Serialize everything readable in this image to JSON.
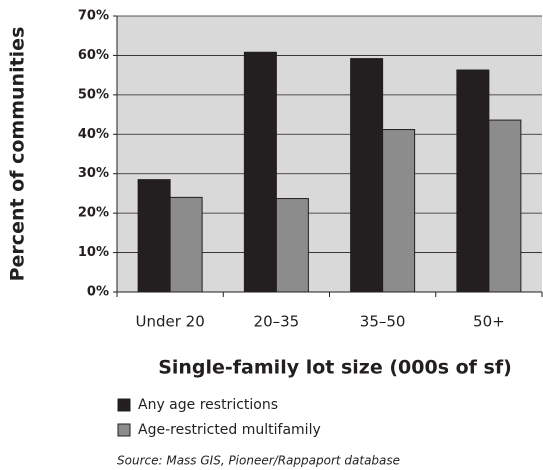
{
  "chart_data": {
    "type": "bar",
    "y_label": "Percent of communities",
    "x_label": "Single-family lot size (000s of sf)",
    "source": "Source: Mass GIS, Pioneer/Rappaport database",
    "categories": [
      "Under 20",
      "20–35",
      "35–50",
      "50+"
    ],
    "series": [
      {
        "name": "Any age restrictions",
        "color": "#231f20",
        "values": [
          28.5,
          60.8,
          59.2,
          56.3
        ]
      },
      {
        "name": "Age-restricted multifamily",
        "color": "#8c8c8c",
        "values": [
          24,
          23.7,
          41.2,
          43.6
        ]
      }
    ],
    "ylim": [
      0,
      70
    ],
    "yticks": [
      {
        "value": 0,
        "label": "0%"
      },
      {
        "value": 10,
        "label": "10%"
      },
      {
        "value": 20,
        "label": "20%"
      },
      {
        "value": 30,
        "label": "30%"
      },
      {
        "value": 40,
        "label": "40%"
      },
      {
        "value": 50,
        "label": "50%"
      },
      {
        "value": 60,
        "label": "60%"
      },
      {
        "value": 70,
        "label": "70%"
      }
    ],
    "grid": true
  }
}
